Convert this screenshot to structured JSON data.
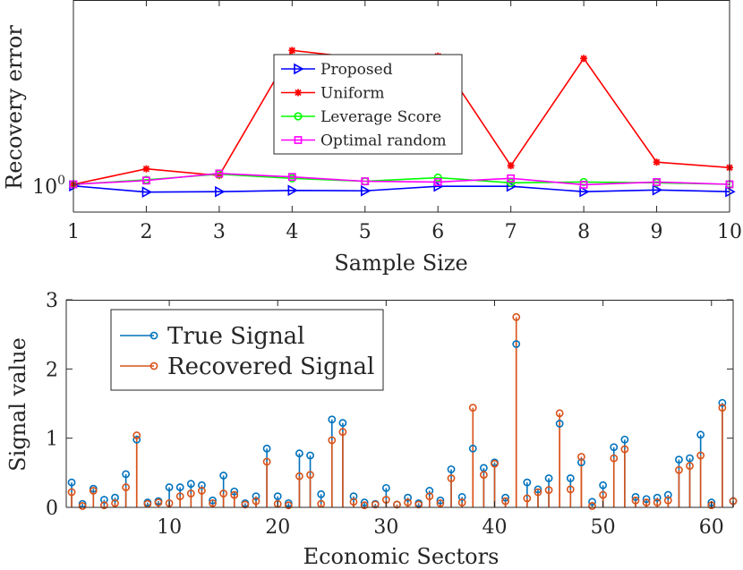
{
  "chart_data": [
    {
      "type": "line",
      "ylabel": "Recovery error",
      "xlabel": "Sample Size",
      "yscale": "log",
      "ytick_base": "10",
      "ytick_exp": "0",
      "xlim": [
        1,
        10
      ],
      "x": [
        1,
        2,
        3,
        4,
        5,
        6,
        7,
        8,
        9,
        10
      ],
      "x_ticks": [
        "1",
        "2",
        "3",
        "4",
        "5",
        "6",
        "7",
        "8",
        "9",
        "10"
      ],
      "legend_location": "center",
      "series": [
        {
          "name": "Proposed",
          "color": "#0000ff",
          "marker": "triangle-right",
          "values": [
            0.98,
            0.905,
            0.91,
            0.925,
            0.92,
            0.975,
            0.975,
            0.91,
            0.93,
            0.91
          ]
        },
        {
          "name": "Uniform",
          "color": "#ff0000",
          "marker": "asterisk",
          "values": [
            1.0,
            1.22,
            1.12,
            5.6,
            5.05,
            5.2,
            1.27,
            5.05,
            1.33,
            1.24
          ]
        },
        {
          "name": "Leverage Score",
          "color": "#00ff00",
          "marker": "circle",
          "values": [
            1.0,
            1.06,
            1.14,
            1.08,
            1.04,
            1.09,
            1.02,
            1.03,
            1.02,
            1.0
          ]
        },
        {
          "name": "Optimal random",
          "color": "#ff00ff",
          "marker": "square",
          "values": [
            1.0,
            1.05,
            1.15,
            1.1,
            1.04,
            1.03,
            1.08,
            0.995,
            1.03,
            1.0
          ]
        }
      ]
    },
    {
      "type": "stem",
      "ylabel": "Signal value",
      "xlabel": "Economic Sectors",
      "xlim": [
        0.5,
        62
      ],
      "ylim": [
        0,
        3
      ],
      "x_ticks": [
        10,
        20,
        30,
        40,
        50,
        60
      ],
      "y_ticks": [
        0,
        1,
        2,
        3
      ],
      "legend_location": "top-left",
      "series": [
        {
          "name": "True Signal",
          "color": "#0072bd",
          "values": [
            0.36,
            0.05,
            0.27,
            0.11,
            0.14,
            0.48,
            0.98,
            0.07,
            0.09,
            0.29,
            0.29,
            0.34,
            0.32,
            0.1,
            0.46,
            0.23,
            0.06,
            0.16,
            0.85,
            0.16,
            0.06,
            0.78,
            0.75,
            0.19,
            1.27,
            1.22,
            0.16,
            0.07,
            0.05,
            0.28,
            0.04,
            0.14,
            0.06,
            0.24,
            0.1,
            0.55,
            0.15,
            0.85,
            0.57,
            0.65,
            0.14,
            2.36,
            0.36,
            0.26,
            0.42,
            1.21,
            0.42,
            0.65,
            0.08,
            0.32,
            0.87,
            0.98,
            0.15,
            0.12,
            0.14,
            0.18,
            0.69,
            0.71,
            1.05,
            0.07,
            1.51,
            0.09
          ]
        },
        {
          "name": "Recovered Signal",
          "color": "#d95319",
          "values": [
            0.22,
            0.02,
            0.24,
            0.03,
            0.06,
            0.29,
            1.04,
            0.05,
            0.07,
            0.06,
            0.16,
            0.2,
            0.24,
            0.06,
            0.2,
            0.18,
            0.04,
            0.09,
            0.66,
            0.05,
            0.03,
            0.45,
            0.47,
            0.05,
            0.97,
            1.09,
            0.08,
            0.03,
            0.04,
            0.11,
            0.04,
            0.07,
            0.04,
            0.16,
            0.06,
            0.42,
            0.07,
            1.44,
            0.47,
            0.63,
            0.09,
            2.75,
            0.13,
            0.22,
            0.25,
            1.36,
            0.26,
            0.73,
            0.02,
            0.18,
            0.71,
            0.84,
            0.1,
            0.07,
            0.07,
            0.1,
            0.54,
            0.6,
            0.75,
            0.03,
            1.44,
            0.09
          ]
        }
      ]
    }
  ]
}
